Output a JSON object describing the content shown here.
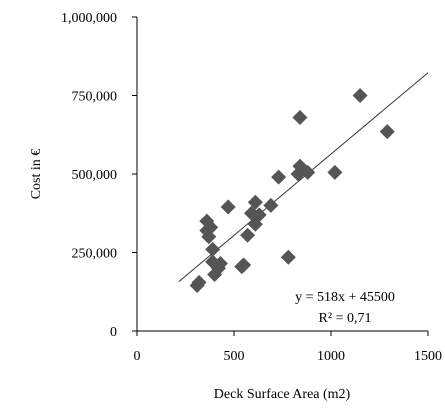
{
  "chart_data": {
    "type": "scatter",
    "title": "",
    "xlabel": "Deck Surface Area (m2)",
    "ylabel": "Cost in €",
    "xlim": [
      0,
      1500
    ],
    "ylim": [
      0,
      1000000
    ],
    "x_ticks": [
      0,
      500,
      1000,
      1500
    ],
    "y_ticks": [
      0,
      250000,
      500000,
      750000,
      1000000
    ],
    "x_tick_labels": [
      "0",
      "500",
      "1000",
      "1500"
    ],
    "y_tick_labels": [
      "0",
      "250,000",
      "500,000",
      "750,000",
      "1,000,000"
    ],
    "grid": false,
    "legend": "none",
    "point_color": "#555555",
    "marker": "diamond",
    "series": [
      {
        "x": [
          310,
          320,
          360,
          360,
          370,
          380,
          390,
          390,
          400,
          420,
          430,
          470,
          540,
          550,
          570,
          590,
          610,
          610,
          630,
          690,
          730,
          780,
          830,
          840,
          840,
          880,
          1020,
          1150,
          1290
        ],
        "y": [
          145000,
          155000,
          350000,
          320000,
          300000,
          330000,
          260000,
          220000,
          180000,
          200000,
          215000,
          395000,
          205000,
          210000,
          305000,
          375000,
          340000,
          410000,
          370000,
          400000,
          490000,
          235000,
          500000,
          525000,
          680000,
          505000,
          505000,
          750000,
          635000
        ]
      }
    ],
    "trendline": {
      "slope": 518,
      "intercept": 45500,
      "x_range": [
        215,
        1500
      ]
    },
    "annotations": [
      {
        "key": "equation",
        "text": "y = 518x + 45500"
      },
      {
        "key": "r2",
        "text": "R² = 0,71"
      }
    ]
  }
}
